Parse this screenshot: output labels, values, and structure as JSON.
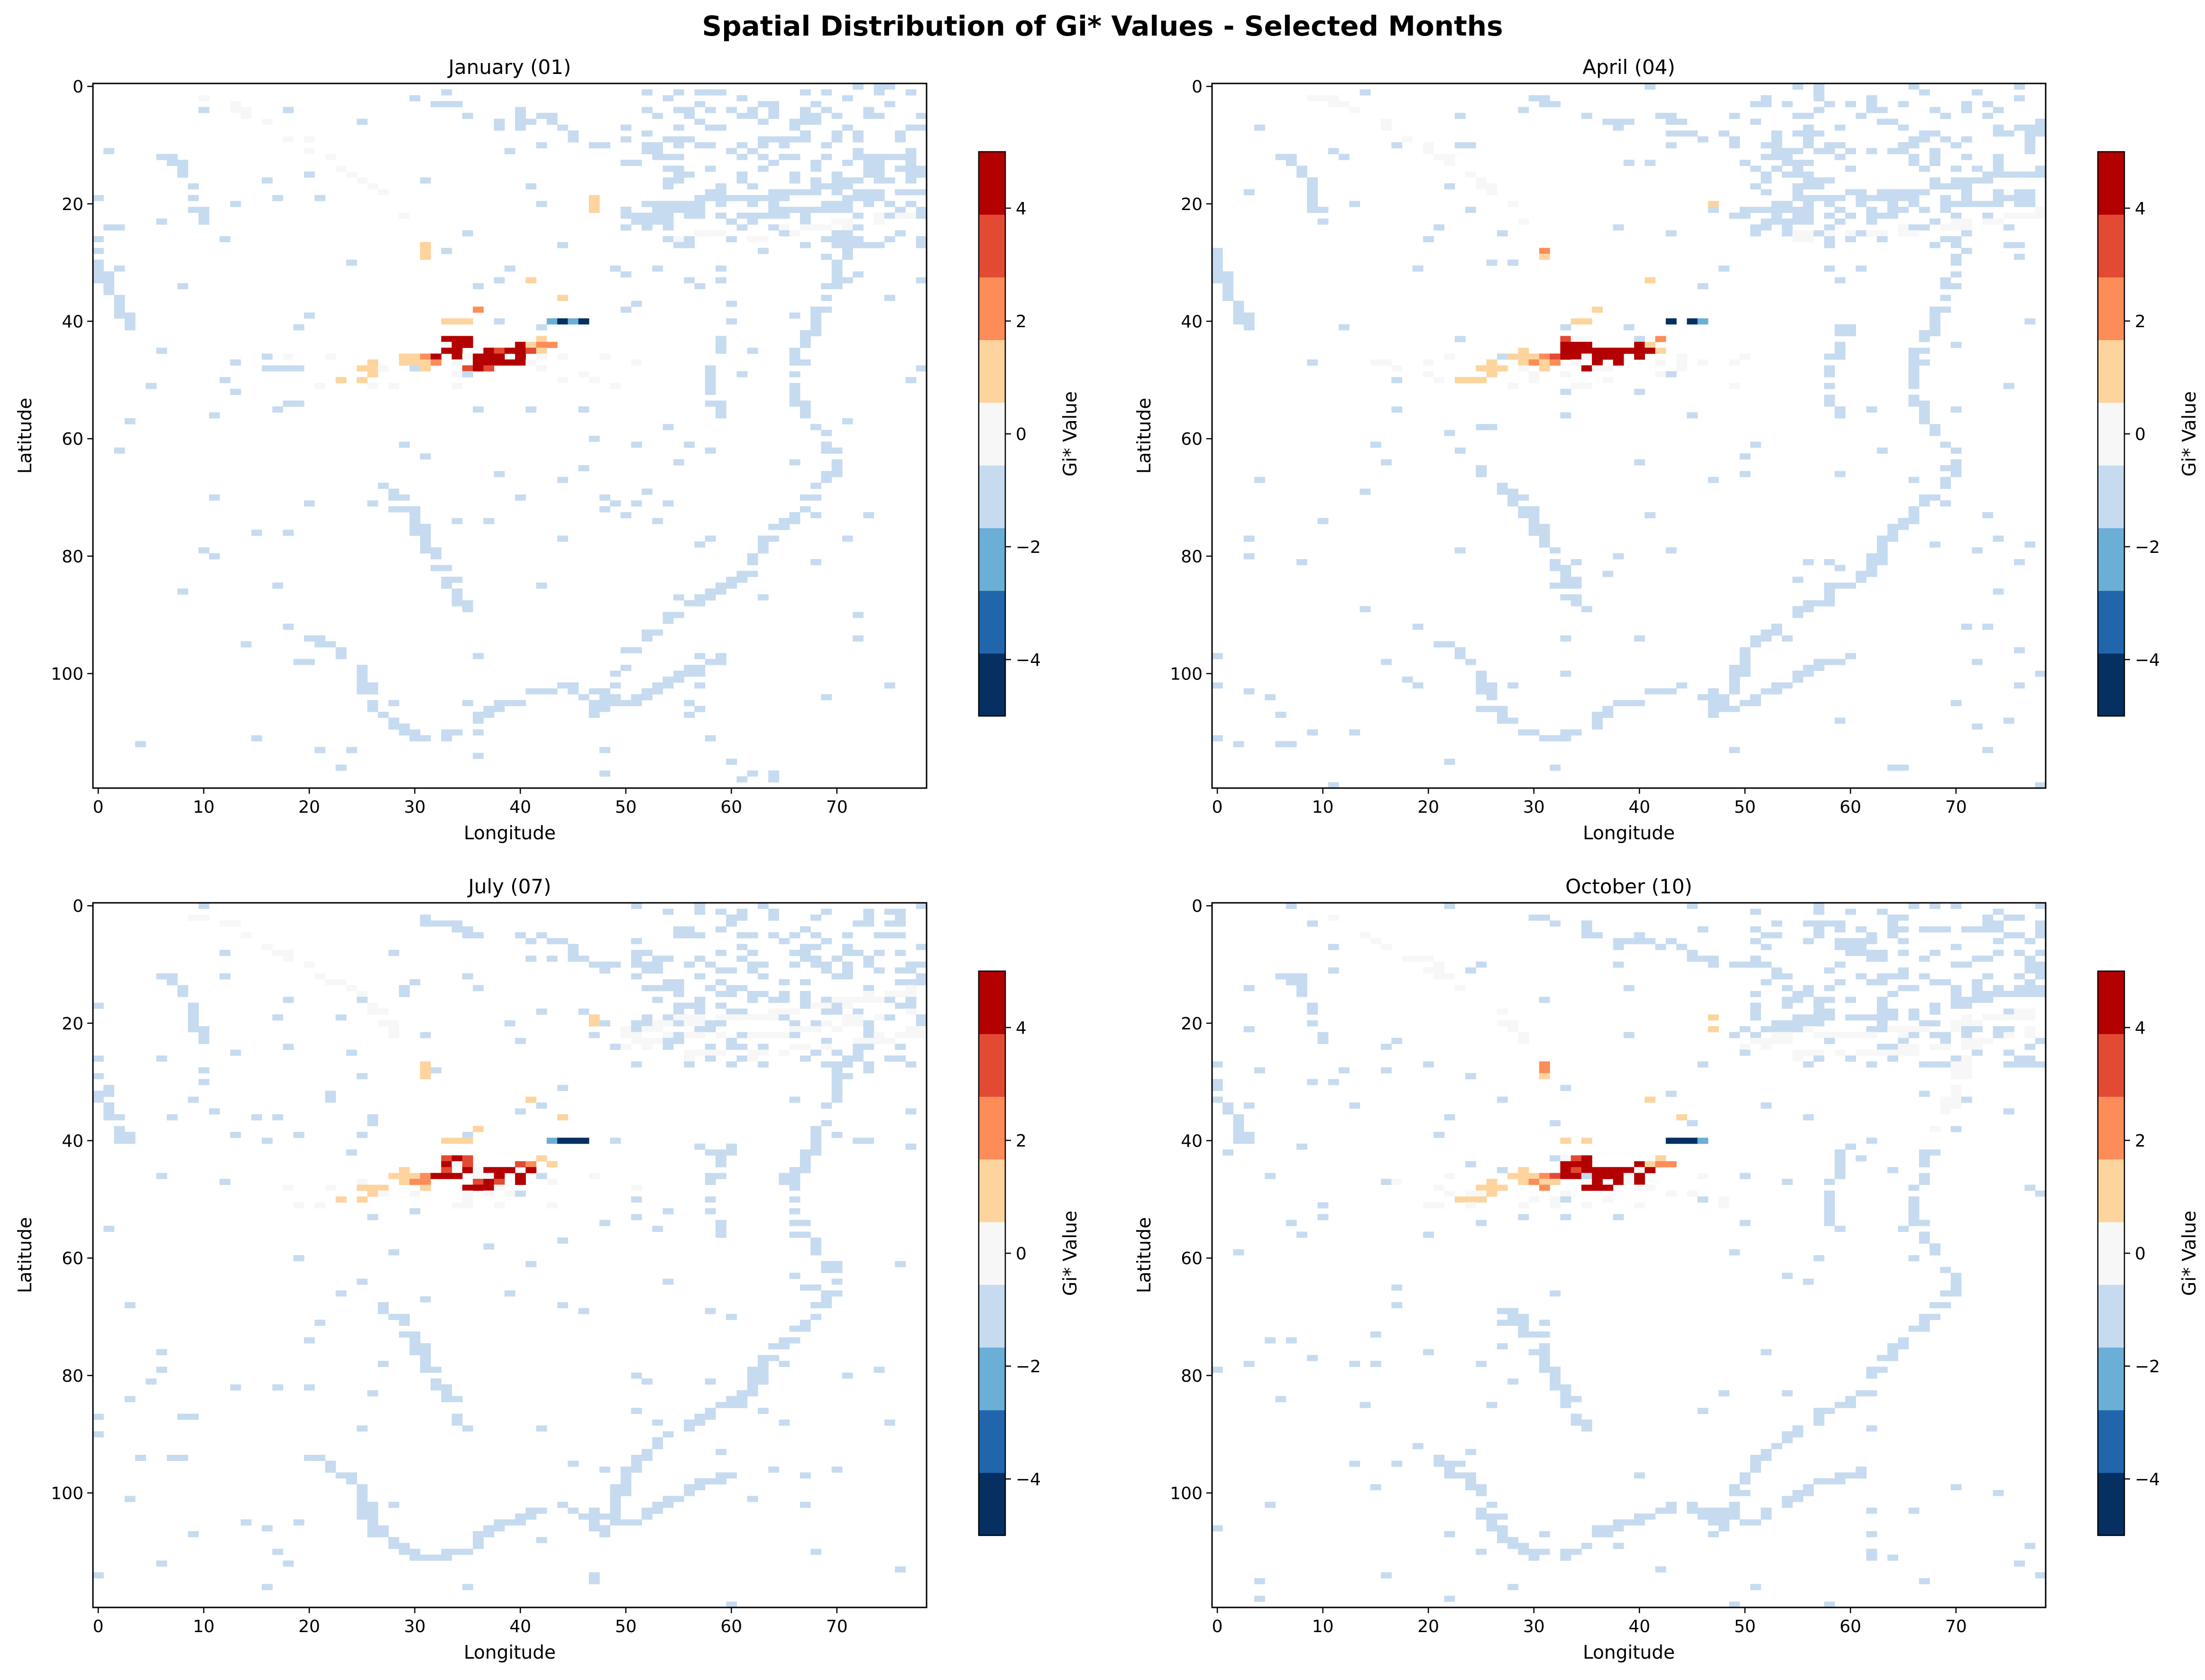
{
  "chart_data": {
    "type": "heatmap",
    "title": "Spatial Distribution of Gi* Values - Selected Months",
    "panels": [
      {
        "title": "January (01)"
      },
      {
        "title": "April (04)"
      },
      {
        "title": "July (07)"
      },
      {
        "title": "October (10)"
      }
    ],
    "xlabel": "Longitude",
    "ylabel": "Latitude",
    "colorbar_label": "Gi* Value",
    "xlim": [
      -0.5,
      78.5
    ],
    "ylim": [
      119.5,
      -0.5
    ],
    "xticks": [
      0,
      10,
      20,
      30,
      40,
      50,
      60,
      70
    ],
    "yticks": [
      0,
      20,
      40,
      60,
      80,
      100
    ],
    "colorbar_ticks": [
      "−4",
      "−2",
      "0",
      "2",
      "4"
    ],
    "colorbar_range": [
      -5,
      5
    ],
    "colormap": [
      "#053061",
      "#2166ac",
      "#6baed6",
      "#c6dbef",
      "#f7f7f7",
      "#fdd49e",
      "#fc8d59",
      "#e34a33",
      "#b30000"
    ]
  }
}
